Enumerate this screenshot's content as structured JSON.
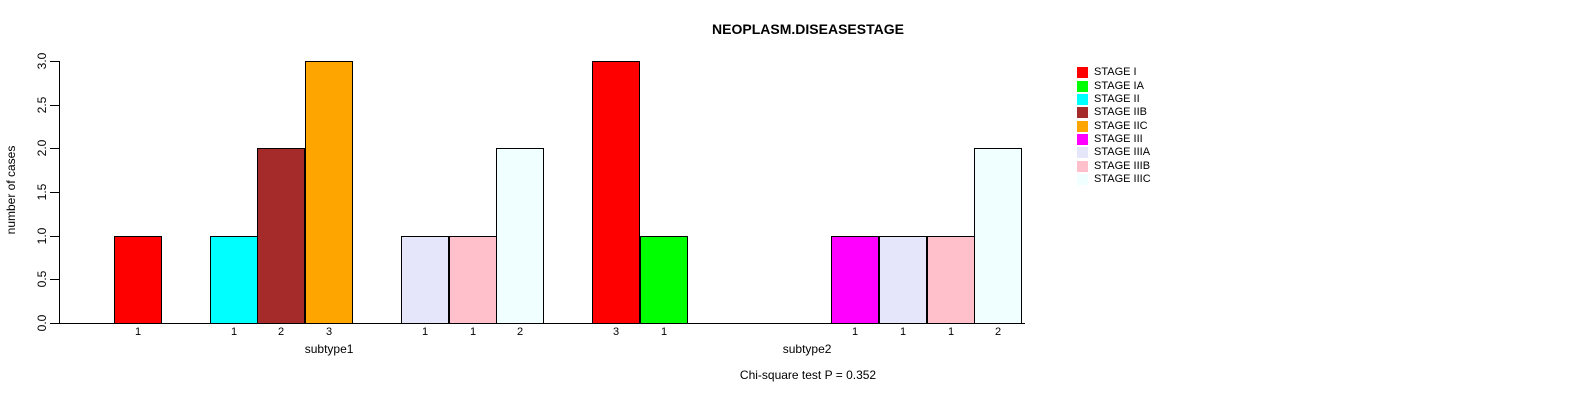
{
  "title": "NEOPLASM.DISEASESTAGE",
  "footer": "Chi-square test P = 0.352",
  "chart_data": {
    "type": "bar",
    "title": "NEOPLASM.DISEASESTAGE",
    "xlabel": "",
    "ylabel": "number of cases",
    "ylim": [
      0,
      3
    ],
    "yticks": [
      "0.0",
      "0.5",
      "1.0",
      "1.5",
      "2.0",
      "2.5",
      "3.0"
    ],
    "grid": false,
    "legend_position": "right-outside",
    "annotation": "Chi-square test P = 0.352",
    "series": [
      {
        "name": "STAGE I",
        "color": "#FF0000",
        "values": [
          1,
          3
        ]
      },
      {
        "name": "STAGE IA",
        "color": "#00FF00",
        "values": [
          0,
          1
        ]
      },
      {
        "name": "STAGE II",
        "color": "#00FFFF",
        "values": [
          1,
          0
        ]
      },
      {
        "name": "STAGE IIB",
        "color": "#A52A2A",
        "values": [
          2,
          0
        ]
      },
      {
        "name": "STAGE IIC",
        "color": "#FFA500",
        "values": [
          3,
          0
        ]
      },
      {
        "name": "STAGE III",
        "color": "#FF00FF",
        "values": [
          0,
          1
        ]
      },
      {
        "name": "STAGE IIIA",
        "color": "#E6E6FA",
        "values": [
          1,
          1
        ]
      },
      {
        "name": "STAGE IIIB",
        "color": "#FFC0CB",
        "values": [
          1,
          1
        ]
      },
      {
        "name": "STAGE IIIC",
        "color": "#F0FFFF",
        "values": [
          2,
          2
        ]
      }
    ],
    "groups": [
      {
        "label": "subtype1",
        "values": [
          1,
          0,
          1,
          2,
          3,
          0,
          1,
          1,
          2
        ]
      },
      {
        "label": "subtype2",
        "values": [
          3,
          1,
          0,
          0,
          0,
          1,
          1,
          1,
          2
        ]
      }
    ],
    "bar_value_labels_shown_only_when_nonzero": true
  }
}
